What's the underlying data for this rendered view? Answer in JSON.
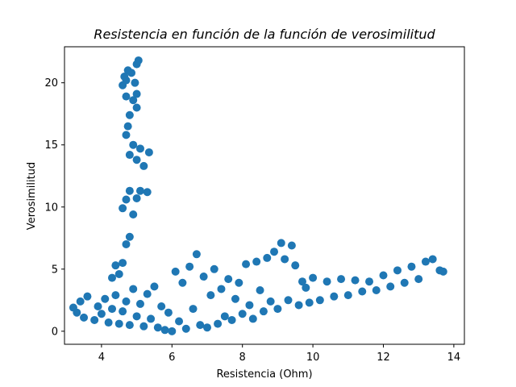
{
  "chart_data": {
    "type": "scatter",
    "title": "Resistencia en función de la función de verosimilitud",
    "xlabel": "Resistencia (Ohm)",
    "ylabel": "Verosimilitud",
    "xlim": [
      2.95,
      14.3
    ],
    "ylim": [
      -1.05,
      22.9
    ],
    "xticks": [
      4,
      6,
      8,
      10,
      12,
      14
    ],
    "yticks": [
      0,
      5,
      10,
      15,
      20
    ],
    "grid": false,
    "legend": "none",
    "marker_color": "#1f77b4",
    "series": [
      {
        "points": [
          [
            3.2,
            1.9
          ],
          [
            3.3,
            1.5
          ],
          [
            3.4,
            2.4
          ],
          [
            3.5,
            1.1
          ],
          [
            3.6,
            2.8
          ],
          [
            3.8,
            0.9
          ],
          [
            3.9,
            2.0
          ],
          [
            4.0,
            1.4
          ],
          [
            4.1,
            2.6
          ],
          [
            4.2,
            0.7
          ],
          [
            4.3,
            1.8
          ],
          [
            4.4,
            2.9
          ],
          [
            4.5,
            0.6
          ],
          [
            4.6,
            1.6
          ],
          [
            4.7,
            2.4
          ],
          [
            4.8,
            0.5
          ],
          [
            4.9,
            3.4
          ],
          [
            5.0,
            1.2
          ],
          [
            5.1,
            2.2
          ],
          [
            5.2,
            0.4
          ],
          [
            5.3,
            3.0
          ],
          [
            5.4,
            1.0
          ],
          [
            5.5,
            3.6
          ],
          [
            5.6,
            0.3
          ],
          [
            5.7,
            2.0
          ],
          [
            5.8,
            0.1
          ],
          [
            5.9,
            1.5
          ],
          [
            6.0,
            0.0
          ],
          [
            6.1,
            4.8
          ],
          [
            6.2,
            0.8
          ],
          [
            6.3,
            3.9
          ],
          [
            6.4,
            0.2
          ],
          [
            6.5,
            5.2
          ],
          [
            6.6,
            1.8
          ],
          [
            6.7,
            6.2
          ],
          [
            6.8,
            0.5
          ],
          [
            6.9,
            4.4
          ],
          [
            7.0,
            0.3
          ],
          [
            7.1,
            2.9
          ],
          [
            7.2,
            5.0
          ],
          [
            7.3,
            0.6
          ],
          [
            7.4,
            3.4
          ],
          [
            7.5,
            1.2
          ],
          [
            7.6,
            4.2
          ],
          [
            7.7,
            0.9
          ],
          [
            7.8,
            2.6
          ],
          [
            7.9,
            3.9
          ],
          [
            8.0,
            1.4
          ],
          [
            8.1,
            5.4
          ],
          [
            8.2,
            2.1
          ],
          [
            8.3,
            1.0
          ],
          [
            8.4,
            5.6
          ],
          [
            8.5,
            3.3
          ],
          [
            8.6,
            1.6
          ],
          [
            8.7,
            5.9
          ],
          [
            8.8,
            2.4
          ],
          [
            8.9,
            6.4
          ],
          [
            9.0,
            1.8
          ],
          [
            9.1,
            7.1
          ],
          [
            9.2,
            5.8
          ],
          [
            9.3,
            2.5
          ],
          [
            9.4,
            6.9
          ],
          [
            9.5,
            5.3
          ],
          [
            9.6,
            2.1
          ],
          [
            9.7,
            4.0
          ],
          [
            9.8,
            3.5
          ],
          [
            9.9,
            2.3
          ],
          [
            10.0,
            4.3
          ],
          [
            10.2,
            2.5
          ],
          [
            10.4,
            4.0
          ],
          [
            10.6,
            2.8
          ],
          [
            10.8,
            4.2
          ],
          [
            11.0,
            2.9
          ],
          [
            11.2,
            4.1
          ],
          [
            11.4,
            3.2
          ],
          [
            11.6,
            4.0
          ],
          [
            11.8,
            3.3
          ],
          [
            12.0,
            4.5
          ],
          [
            12.2,
            3.6
          ],
          [
            12.4,
            4.9
          ],
          [
            12.6,
            3.9
          ],
          [
            12.8,
            5.2
          ],
          [
            13.0,
            4.2
          ],
          [
            13.2,
            5.6
          ],
          [
            13.4,
            5.8
          ],
          [
            13.6,
            4.9
          ],
          [
            13.7,
            4.8
          ],
          [
            4.3,
            4.3
          ],
          [
            4.4,
            5.3
          ],
          [
            4.5,
            4.6
          ],
          [
            4.6,
            5.5
          ],
          [
            4.7,
            7.0
          ],
          [
            4.8,
            7.6
          ],
          [
            4.9,
            9.4
          ],
          [
            4.6,
            9.9
          ],
          [
            4.7,
            10.6
          ],
          [
            4.8,
            11.3
          ],
          [
            5.0,
            10.7
          ],
          [
            5.1,
            11.3
          ],
          [
            5.3,
            11.2
          ],
          [
            4.8,
            14.2
          ],
          [
            4.9,
            15.0
          ],
          [
            5.0,
            13.8
          ],
          [
            5.1,
            14.7
          ],
          [
            5.2,
            13.3
          ],
          [
            5.35,
            14.4
          ],
          [
            4.7,
            15.8
          ],
          [
            4.75,
            16.5
          ],
          [
            4.8,
            17.4
          ],
          [
            4.7,
            18.9
          ],
          [
            4.9,
            18.6
          ],
          [
            5.0,
            18.0
          ],
          [
            4.6,
            19.8
          ],
          [
            4.7,
            20.2
          ],
          [
            4.85,
            20.8
          ],
          [
            4.95,
            20.0
          ],
          [
            5.0,
            21.5
          ],
          [
            5.05,
            21.8
          ],
          [
            4.65,
            20.5
          ],
          [
            5.0,
            19.1
          ],
          [
            4.75,
            21.0
          ]
        ]
      }
    ]
  }
}
